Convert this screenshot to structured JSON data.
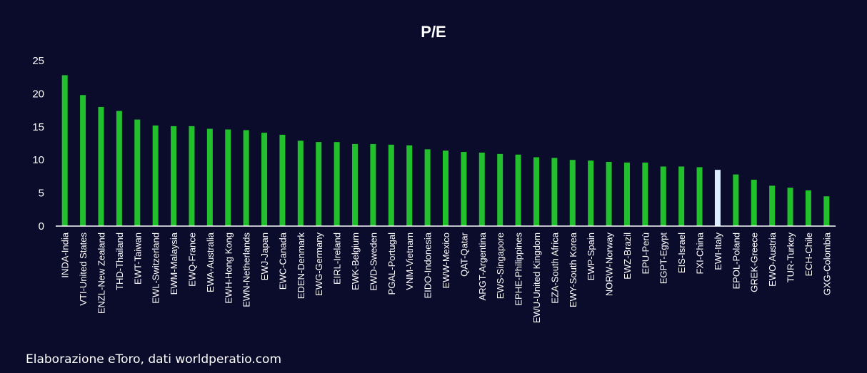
{
  "chart_data": {
    "type": "bar",
    "title": "P/E",
    "xlabel": "",
    "ylabel": "",
    "ylim": [
      0,
      25
    ],
    "yticks": [
      0,
      5,
      10,
      15,
      20,
      25
    ],
    "grid": false,
    "categories": [
      "INDA-India",
      "VTI-United States",
      "ENZL-New Zealand",
      "THD-Thailand",
      "EWT-Taiwan",
      "EWL-Switzerland",
      "EWM-Malaysia",
      "EWQ-France",
      "EWA-Australia",
      "EWH-Hong Kong",
      "EWN-Netherlands",
      "EWJ-Japan",
      "EWC-Canada",
      "EDEN-Denmark",
      "EWG-Germany",
      "EIRL-Ireland",
      "EWK-Belgium",
      "EWD-Sweden",
      "PGAL-Portugal",
      "VNM-Vietnam",
      "EIDO-Indonesia",
      "EWW-Mexico",
      "QAT-Qatar",
      "ARGT-Argentina",
      "EWS-Singapore",
      "EPHE-Philippines",
      "EWU-United Kingdom",
      "EZA-South Africa",
      "EWY-South Korea",
      "EWP-Spain",
      "NORW-Norway",
      "EWZ-Brazil",
      "EPU-Perù",
      "EGPT-Egypt",
      "EIS-Israel",
      "FXI-China",
      "EWI-Italy",
      "EPOL-Poland",
      "GREK-Greece",
      "EWO-Austria",
      "TUR-Turkey",
      "ECH-Chile",
      "GXG-Colombia"
    ],
    "values": [
      22.8,
      19.8,
      18.0,
      17.4,
      16.1,
      15.2,
      15.1,
      15.1,
      14.7,
      14.6,
      14.5,
      14.1,
      13.8,
      12.9,
      12.7,
      12.7,
      12.4,
      12.4,
      12.3,
      12.2,
      11.6,
      11.4,
      11.2,
      11.1,
      10.9,
      10.8,
      10.4,
      10.3,
      10.0,
      9.9,
      9.7,
      9.6,
      9.6,
      9.0,
      9.0,
      8.9,
      8.5,
      7.8,
      7.0,
      6.1,
      5.8,
      5.4,
      4.5
    ],
    "highlight": "EWI-Italy",
    "colors": {
      "bar": "#22c02c",
      "highlight": "#dbeeff",
      "background": "#0b0b2b",
      "axis": "#ffffff",
      "text": "#ffffff"
    }
  },
  "footer": {
    "source": "Elaborazione eToro, dati worldperatio.com"
  }
}
